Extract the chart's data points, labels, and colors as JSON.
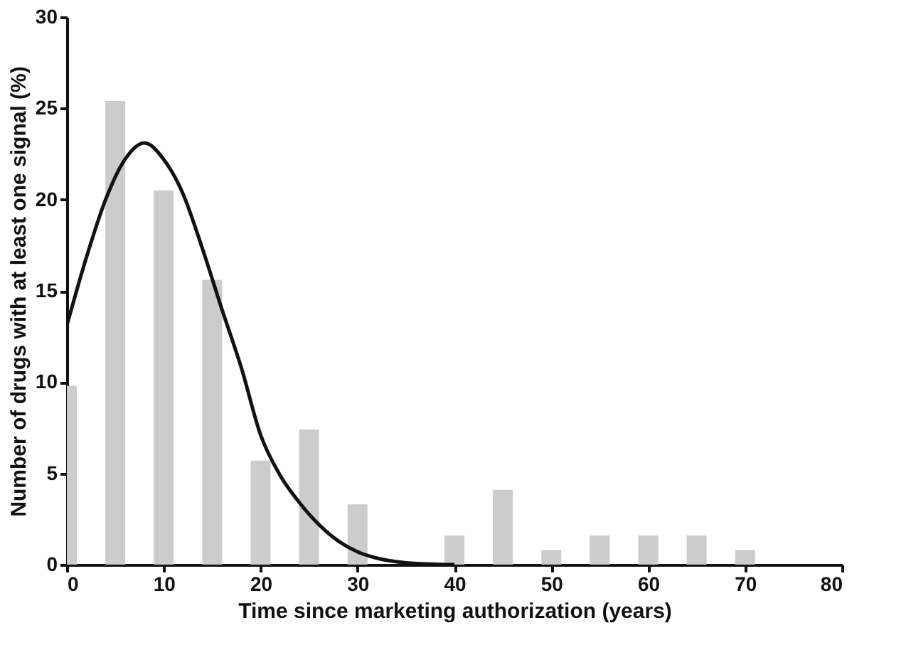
{
  "chart_data": {
    "type": "bar",
    "xlabel": "Time since marketing authorization (years)",
    "ylabel": "Number of drugs with at least one signal (%)",
    "x": [
      0,
      5,
      10,
      15,
      20,
      25,
      30,
      35,
      40,
      45,
      50,
      55,
      60,
      65,
      70
    ],
    "series": [
      {
        "color": "#cccccc",
        "values": [
          9.8,
          25.4,
          20.5,
          15.6,
          5.7,
          7.4,
          3.3,
          0,
          1.6,
          4.1,
          0.8,
          1.6,
          1.6,
          1.6,
          0.8
        ]
      },
      {
        "type": "line",
        "color": "#111111",
        "x": [
          0,
          2,
          4,
          6,
          8,
          10,
          12,
          14,
          16,
          18,
          20,
          22,
          24,
          26,
          28,
          30,
          32,
          35,
          38,
          40
        ],
        "values": [
          13.1,
          16.8,
          20,
          22.2,
          23.1,
          22.2,
          20.3,
          17.3,
          14,
          10.8,
          7.1,
          4.9,
          3.4,
          2.2,
          1.3,
          0.7,
          0.35,
          0.1,
          0.02,
          0
        ]
      }
    ],
    "xlim": [
      0,
      80
    ],
    "xticks": [
      0,
      10,
      20,
      30,
      40,
      50,
      60,
      70,
      80
    ],
    "ylim": [
      0,
      30
    ],
    "yticks": [
      0,
      5,
      10,
      15,
      20,
      25,
      30
    ],
    "grid": false,
    "line_style": "solid"
  }
}
